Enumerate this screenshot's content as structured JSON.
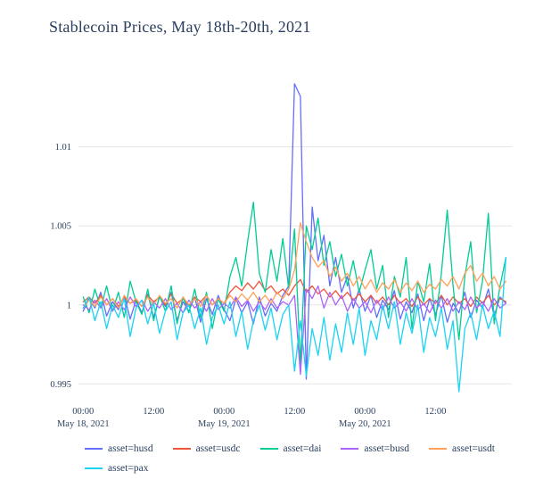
{
  "title": "Stablecoin Prices, May 18th-20th, 2021",
  "colors": {
    "title_text": "#2a3f5f",
    "tick_text": "#2a3f5f",
    "gridline": "#e5e5e5",
    "plot_background": "#ffffff"
  },
  "chart_data": {
    "type": "line",
    "title": "Stablecoin Prices, May 18th-20th, 2021",
    "xlabel": "",
    "ylabel": "",
    "grid": "horizontal-only",
    "legend_position": "bottom",
    "x_unit": "hours since May 18, 2021 00:00",
    "xlim": [
      -0.8,
      73
    ],
    "ylim": [
      0.994,
      1.0145
    ],
    "yticks": [
      {
        "value": 0.995,
        "label": "0.995"
      },
      {
        "value": 1.0,
        "label": "1"
      },
      {
        "value": 1.005,
        "label": "1.005"
      },
      {
        "value": 1.01,
        "label": "1.01"
      }
    ],
    "xticks": [
      {
        "value": 0,
        "label": "00:00",
        "sublabel": "May 18, 2021"
      },
      {
        "value": 12,
        "label": "12:00",
        "sublabel": ""
      },
      {
        "value": 24,
        "label": "00:00",
        "sublabel": "May 19, 2021"
      },
      {
        "value": 36,
        "label": "12:00",
        "sublabel": ""
      },
      {
        "value": 48,
        "label": "00:00",
        "sublabel": "May 20, 2021"
      },
      {
        "value": 60,
        "label": "12:00",
        "sublabel": ""
      }
    ],
    "x": [
      0,
      1,
      2,
      3,
      4,
      5,
      6,
      7,
      8,
      9,
      10,
      11,
      12,
      13,
      14,
      15,
      16,
      17,
      18,
      19,
      20,
      21,
      22,
      23,
      24,
      25,
      26,
      27,
      28,
      29,
      30,
      31,
      32,
      33,
      34,
      35,
      36,
      37,
      38,
      39,
      40,
      41,
      42,
      43,
      44,
      45,
      46,
      47,
      48,
      49,
      50,
      51,
      52,
      53,
      54,
      55,
      56,
      57,
      58,
      59,
      60,
      61,
      62,
      63,
      64,
      65,
      66,
      67,
      68,
      69,
      70,
      71,
      72
    ],
    "series": [
      {
        "name": "asset=husd",
        "color": "#636efa",
        "values": [
          0.9996,
          1.0004,
          0.9998,
          1.0008,
          0.9993,
          1.0002,
          0.9997,
          1.0006,
          0.9991,
          1.0003,
          0.9995,
          1.0007,
          0.9992,
          1.0005,
          0.9999,
          1.0008,
          0.999,
          1.0002,
          0.9996,
          1.0005,
          0.9989,
          1.0004,
          0.9994,
          1.0006,
          0.9997,
          0.999,
          1.0004,
          0.9995,
          1.0002,
          0.9988,
          1.0005,
          0.9993,
          1.0001,
          0.9996,
          1.0006,
          1.0012,
          1.014,
          1.0132,
          0.9953,
          1.0062,
          1.0028,
          1.0044,
          1.0012,
          1.003,
          1.0008,
          1.0018,
          0.9998,
          1.001,
          0.9996,
          1.0006,
          0.9992,
          1.0003,
          0.9997,
          1.0009,
          0.9991,
          1.0002,
          0.9995,
          1.0007,
          0.999,
          1.0004,
          0.9994,
          1.0006,
          0.9989,
          1.0001,
          0.9995,
          1.0008,
          0.9992,
          1.0003,
          0.9998,
          1.001,
          0.9993,
          1.0005,
          1.0001
        ]
      },
      {
        "name": "asset=usdc",
        "color": "#EF553B",
        "values": [
          1.0002,
          1.0005,
          1.0001,
          1.0006,
          1.0,
          1.0004,
          0.9999,
          1.0005,
          1.0001,
          1.0003,
          0.9999,
          1.0006,
          1.0002,
          1.0005,
          1.0,
          1.0007,
          1.0001,
          1.0004,
          0.9999,
          1.0005,
          1.0002,
          1.0006,
          1.0,
          1.0004,
          1.0001,
          1.0008,
          1.0012,
          1.0009,
          1.0014,
          1.001,
          1.0015,
          1.0009,
          1.0012,
          1.0007,
          1.001,
          1.0006,
          1.0012,
          1.0016,
          1.0008,
          1.0012,
          1.0007,
          1.001,
          1.0005,
          1.0009,
          1.0004,
          1.0008,
          1.0003,
          1.0007,
          1.0002,
          1.0006,
          1.0001,
          1.0005,
          1.0,
          1.0006,
          1.0001,
          1.0004,
          0.9999,
          1.0005,
          1.0,
          1.0004,
          1.0001,
          1.0006,
          1.0,
          1.0005,
          1.0001,
          1.0004,
          0.9999,
          1.0005,
          1.0001,
          1.0006,
          1.0,
          1.0004,
          1.0002
        ]
      },
      {
        "name": "asset=dai",
        "color": "#00cc96",
        "values": [
          1.0005,
          0.9995,
          1.001,
          0.9998,
          1.0012,
          0.9996,
          1.0008,
          0.9992,
          1.0015,
          1.0002,
          0.9994,
          1.001,
          0.999,
          1.0006,
          0.9996,
          1.0012,
          0.9988,
          1.0005,
          0.9995,
          1.001,
          0.9992,
          1.0008,
          0.9985,
          1.0004,
          0.9996,
          1.0018,
          1.003,
          1.0012,
          1.004,
          1.0065,
          1.002,
          1.0008,
          1.0035,
          1.0015,
          1.0042,
          1.001,
          1.0048,
          0.9962,
          1.005,
          1.0035,
          1.0055,
          1.0025,
          1.004,
          1.0018,
          1.0032,
          1.0012,
          1.0028,
          1.0008,
          1.0022,
          1.0035,
          1.001,
          1.0025,
          0.9992,
          1.0018,
          1.0005,
          1.003,
          0.9985,
          1.0015,
          1.0002,
          1.0026,
          0.999,
          1.002,
          1.006,
          1.0012,
          0.9978,
          1.0018,
          1.004,
          0.9995,
          1.0015,
          1.0058,
          0.9988,
          1.0012,
          1.003
        ]
      },
      {
        "name": "asset=busd",
        "color": "#ab63fa",
        "values": [
          1.0,
          0.9997,
          1.0003,
          0.9998,
          1.0004,
          0.9996,
          1.0002,
          0.9997,
          1.0005,
          0.9999,
          1.0003,
          0.9996,
          1.0002,
          0.9998,
          1.0004,
          0.9997,
          1.0001,
          0.9995,
          1.0003,
          0.9998,
          1.0002,
          0.9996,
          1.0004,
          0.9997,
          1.0001,
          0.9998,
          1.0005,
          0.9999,
          1.0003,
          0.9996,
          1.0002,
          0.9997,
          1.0004,
          0.9998,
          1.0002,
          1.0,
          1.0006,
          0.9956,
          1.001,
          1.0004,
          1.0012,
          0.9998,
          1.0008,
          1.0,
          1.0006,
          0.9996,
          1.0004,
          0.9998,
          1.0002,
          0.9995,
          1.0003,
          0.9997,
          1.0005,
          0.9998,
          1.0002,
          0.9996,
          1.0004,
          0.9997,
          1.0001,
          0.9995,
          1.0003,
          0.9998,
          1.0004,
          0.9996,
          1.0002,
          0.9997,
          1.0005,
          0.9998,
          1.0002,
          0.9996,
          1.0004,
          0.9998,
          1.0001
        ]
      },
      {
        "name": "asset=usdt",
        "color": "#FFA15A",
        "values": [
          0.9998,
          1.0003,
          0.9999,
          1.0005,
          1.0,
          1.0004,
          0.9998,
          1.0006,
          1.0001,
          1.0004,
          0.9999,
          1.0005,
          1.0,
          1.0006,
          1.0001,
          1.0004,
          0.9998,
          1.0005,
          1.0,
          1.0004,
          0.9999,
          1.0006,
          1.0,
          1.0004,
          1.0001,
          1.0006,
          1.0002,
          1.0007,
          1.0003,
          1.0008,
          1.0002,
          1.0006,
          1.0001,
          1.0008,
          1.0004,
          1.001,
          1.0022,
          1.0052,
          1.004,
          1.003,
          1.0024,
          1.0028,
          1.0018,
          1.0024,
          1.0015,
          1.002,
          1.0012,
          1.0018,
          1.001,
          1.0016,
          1.0008,
          1.0014,
          1.001,
          1.0016,
          1.0008,
          1.0014,
          1.0009,
          1.0015,
          1.0008,
          1.0013,
          1.001,
          1.0016,
          1.0012,
          1.0018,
          1.001,
          1.002,
          1.0025,
          1.0015,
          1.002,
          1.0012,
          1.0018,
          1.001,
          1.0015
        ]
      },
      {
        "name": "asset=pax",
        "color": "#19d3f3",
        "values": [
          0.9998,
          1.0005,
          0.999,
          1.0002,
          0.9985,
          1.0,
          0.9992,
          1.0004,
          0.998,
          0.9998,
          1.0003,
          0.9988,
          1.0001,
          0.9982,
          0.9996,
          1.0002,
          0.9978,
          0.9995,
          1.0,
          0.9985,
          0.9998,
          0.9975,
          0.9992,
          1.0,
          0.9988,
          1.0002,
          0.998,
          0.9996,
          0.9972,
          0.999,
          1.0,
          0.9984,
          0.9998,
          0.9978,
          0.9994,
          1.0,
          0.9958,
          0.999,
          0.9955,
          0.9985,
          0.9968,
          0.9992,
          0.9965,
          0.9988,
          0.997,
          0.9995,
          0.9975,
          0.9998,
          0.9968,
          0.999,
          0.9978,
          1.0,
          0.9985,
          1.0002,
          0.9975,
          0.9995,
          0.9982,
          1.0,
          0.997,
          0.9992,
          0.998,
          0.9998,
          0.9972,
          0.999,
          0.9945,
          0.9985,
          0.9995,
          0.9978,
          1.0,
          0.9985,
          0.9996,
          0.998,
          1.003
        ]
      }
    ]
  }
}
